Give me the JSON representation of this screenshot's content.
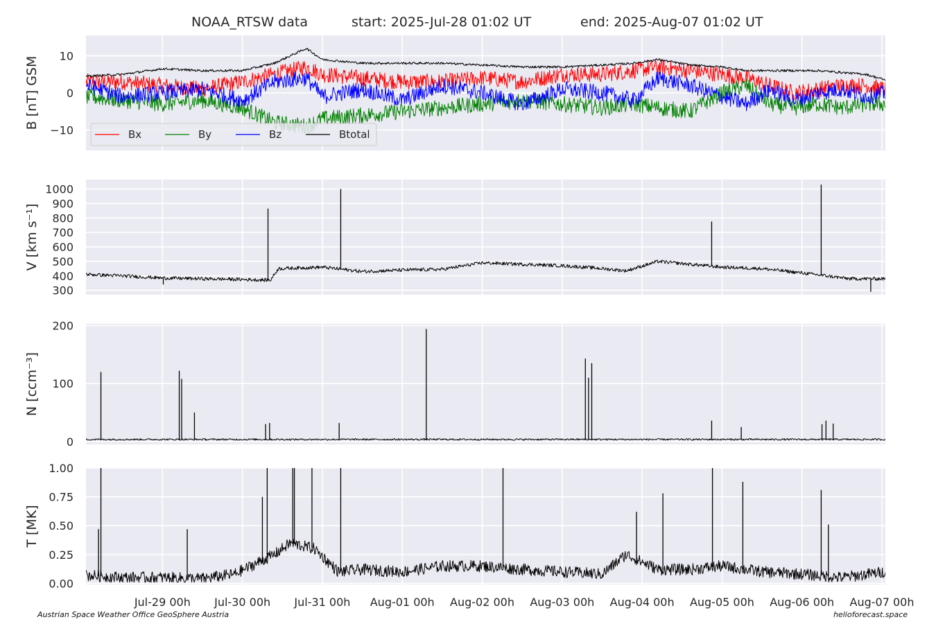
{
  "title": {
    "source": "NOAA_RTSW data",
    "start": "start: 2025-Jul-28 01:02 UT",
    "end": "end: 2025-Aug-07 01:02 UT"
  },
  "credits": {
    "left": "Austrian Space Weather Office   GeoSphere Austria",
    "right": "helioforecast.space"
  },
  "chart_data": [
    {
      "type": "line",
      "ylabel": "B [nT] GSM",
      "ylim": [
        -15.5,
        15.5
      ],
      "yticks": [
        10,
        0,
        -10
      ],
      "ytick_labels": [
        "10",
        "0",
        "−10"
      ],
      "grid": true,
      "legend_placement": "lower-left",
      "x_start_day": 0.0431,
      "x_end_day": 10.0431,
      "series": [
        {
          "name": "Bx",
          "color": "#ff0000",
          "x": [
            0.05,
            0.5,
            1.0,
            1.5,
            2.0,
            2.4,
            2.8,
            3.0,
            3.5,
            4.0,
            4.5,
            5.0,
            5.5,
            6.0,
            6.5,
            6.9,
            7.2,
            7.6,
            8.0,
            8.3,
            8.6,
            8.9,
            9.2,
            9.5,
            9.8,
            10.04
          ],
          "values": [
            3,
            3,
            2,
            1,
            3,
            5,
            7,
            5,
            4,
            3,
            3,
            4,
            3,
            5,
            5,
            6,
            7,
            6,
            5,
            4,
            2,
            0,
            1,
            2,
            2,
            1
          ]
        },
        {
          "name": "By",
          "color": "#008000",
          "x": [
            0.05,
            0.5,
            1.0,
            1.5,
            2.0,
            2.4,
            2.8,
            3.0,
            3.5,
            4.0,
            4.5,
            5.0,
            5.5,
            6.0,
            6.5,
            6.9,
            7.2,
            7.6,
            8.0,
            8.3,
            8.6,
            8.9,
            9.2,
            9.5,
            9.8,
            10.04
          ],
          "values": [
            -1,
            -2,
            -3,
            -2,
            -4,
            -8,
            -9,
            -7,
            -6,
            -5,
            -4,
            -3,
            -2,
            -3,
            -4,
            -3,
            -4,
            -5,
            0,
            2,
            -3,
            -4,
            -3,
            -4,
            -3,
            -3
          ]
        },
        {
          "name": "Bz",
          "color": "#0000ff",
          "x": [
            0.05,
            0.5,
            1.0,
            1.5,
            2.0,
            2.4,
            2.8,
            3.0,
            3.5,
            4.0,
            4.5,
            5.0,
            5.5,
            6.0,
            6.5,
            6.9,
            7.2,
            7.6,
            8.0,
            8.3,
            8.6,
            8.9,
            9.2,
            9.5,
            9.8,
            10.04
          ],
          "values": [
            2,
            -1,
            0,
            1,
            -2,
            3,
            4,
            -1,
            1,
            -2,
            2,
            0,
            -3,
            1,
            0,
            -2,
            4,
            2,
            -1,
            -3,
            1,
            -2,
            0,
            1,
            -1,
            0
          ]
        },
        {
          "name": "Btotal",
          "color": "#000000",
          "x": [
            0.05,
            0.5,
            1.0,
            1.5,
            2.0,
            2.4,
            2.8,
            3.0,
            3.5,
            4.0,
            4.5,
            5.0,
            5.5,
            6.0,
            6.5,
            6.9,
            7.2,
            7.6,
            8.0,
            8.3,
            8.6,
            8.9,
            9.2,
            9.5,
            9.8,
            10.04
          ],
          "values": [
            4.5,
            5,
            6.5,
            6,
            6,
            8,
            12,
            9,
            8,
            8,
            8,
            7.5,
            7,
            7,
            7.5,
            8,
            9,
            7.5,
            7,
            6,
            6,
            6,
            6,
            5.5,
            5,
            3.5
          ]
        }
      ]
    },
    {
      "type": "line",
      "ylabel": "V [km s⁻¹]",
      "ylim": [
        270,
        1065
      ],
      "yticks": [
        1000,
        900,
        800,
        700,
        600,
        500,
        400,
        300
      ],
      "ytick_labels": [
        "1000",
        "900",
        "800",
        "700",
        "600",
        "500",
        "400",
        "300"
      ],
      "grid": true,
      "x_start_day": 0.0431,
      "x_end_day": 10.0431,
      "series": [
        {
          "name": "",
          "color": "#000000",
          "x": [
            0.05,
            0.5,
            1.0,
            1.5,
            2.0,
            2.35,
            2.45,
            3.0,
            3.5,
            4.0,
            4.5,
            5.0,
            5.5,
            6.0,
            6.4,
            6.8,
            7.2,
            7.6,
            8.0,
            8.5,
            9.0,
            9.3,
            9.6,
            10.04
          ],
          "values": [
            410,
            400,
            385,
            380,
            375,
            370,
            450,
            460,
            430,
            440,
            445,
            490,
            480,
            470,
            455,
            435,
            500,
            480,
            460,
            450,
            420,
            400,
            380,
            380
          ],
          "spikes": [
            {
              "x": 2.32,
              "v": 865
            },
            {
              "x": 3.23,
              "v": 1000
            },
            {
              "x": 7.87,
              "v": 775
            },
            {
              "x": 9.24,
              "v": 1030
            },
            {
              "x": 9.86,
              "v": 290
            },
            {
              "x": 1.01,
              "v": 340
            }
          ]
        }
      ]
    },
    {
      "type": "line",
      "ylabel": "N [ccm⁻³]",
      "ylim": [
        -5,
        203
      ],
      "yticks": [
        200,
        100,
        0
      ],
      "ytick_labels": [
        "200",
        "100",
        "0"
      ],
      "grid": true,
      "x_start_day": 0.0431,
      "x_end_day": 10.0431,
      "series": [
        {
          "name": "",
          "color": "#000000",
          "baseline": 3,
          "spikes": [
            {
              "x": 0.23,
              "v": 120
            },
            {
              "x": 1.21,
              "v": 122
            },
            {
              "x": 1.24,
              "v": 108
            },
            {
              "x": 1.4,
              "v": 50
            },
            {
              "x": 2.29,
              "v": 30
            },
            {
              "x": 2.34,
              "v": 32
            },
            {
              "x": 3.21,
              "v": 32
            },
            {
              "x": 4.3,
              "v": 194
            },
            {
              "x": 6.29,
              "v": 143
            },
            {
              "x": 6.33,
              "v": 110
            },
            {
              "x": 6.37,
              "v": 135
            },
            {
              "x": 7.87,
              "v": 36
            },
            {
              "x": 8.24,
              "v": 25
            },
            {
              "x": 9.25,
              "v": 30
            },
            {
              "x": 9.3,
              "v": 36
            },
            {
              "x": 9.39,
              "v": 31
            }
          ]
        }
      ]
    },
    {
      "type": "line",
      "ylabel": "T [MK]",
      "ylim": [
        -0.01,
        1.0
      ],
      "yticks": [
        1.0,
        0.75,
        0.5,
        0.25,
        0.0
      ],
      "ytick_labels": [
        "1.00",
        "0.75",
        "0.50",
        "0.25",
        "0.00"
      ],
      "grid": true,
      "x_start_day": 0.0431,
      "x_end_day": 10.0431,
      "xticks": [
        1,
        2,
        3,
        4,
        5,
        6,
        7,
        8,
        9,
        10
      ],
      "xtick_labels": [
        "Jul-29 00h",
        "Jul-30 00h",
        "Jul-31 00h",
        "Aug-01 00h",
        "Aug-02 00h",
        "Aug-03 00h",
        "Aug-04 00h",
        "Aug-05 00h",
        "Aug-06 00h",
        "Aug-07 00h"
      ],
      "series": [
        {
          "name": "",
          "color": "#000000",
          "x": [
            0.05,
            0.5,
            1.0,
            1.5,
            1.9,
            2.4,
            2.6,
            2.9,
            3.2,
            3.5,
            4.0,
            4.5,
            5.0,
            5.5,
            6.0,
            6.5,
            6.8,
            7.2,
            7.6,
            8.0,
            8.5,
            9.0,
            9.5,
            10.04
          ],
          "values": [
            0.07,
            0.05,
            0.05,
            0.04,
            0.08,
            0.25,
            0.35,
            0.3,
            0.1,
            0.12,
            0.1,
            0.15,
            0.15,
            0.12,
            0.1,
            0.08,
            0.25,
            0.12,
            0.12,
            0.15,
            0.1,
            0.08,
            0.05,
            0.1
          ],
          "spikes": [
            {
              "x": 0.23,
              "v": 1.0
            },
            {
              "x": 0.2,
              "v": 0.47
            },
            {
              "x": 1.31,
              "v": 0.47
            },
            {
              "x": 2.25,
              "v": 0.75
            },
            {
              "x": 2.31,
              "v": 1.0
            },
            {
              "x": 2.63,
              "v": 1.0
            },
            {
              "x": 2.65,
              "v": 1.0
            },
            {
              "x": 2.87,
              "v": 1.0
            },
            {
              "x": 3.23,
              "v": 1.0
            },
            {
              "x": 5.26,
              "v": 1.0
            },
            {
              "x": 7.26,
              "v": 0.78
            },
            {
              "x": 7.88,
              "v": 1.0
            },
            {
              "x": 8.26,
              "v": 0.88
            },
            {
              "x": 9.24,
              "v": 0.81
            },
            {
              "x": 9.33,
              "v": 0.51
            },
            {
              "x": 6.93,
              "v": 0.62
            }
          ]
        }
      ]
    }
  ]
}
